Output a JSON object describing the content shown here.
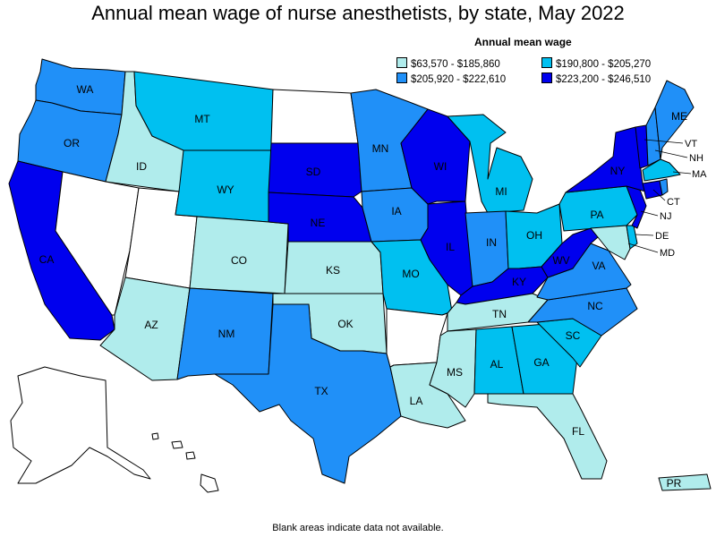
{
  "title": "Annual mean wage of nurse anesthetists, by state, May 2022",
  "legend": {
    "title": "Annual mean wage",
    "bins": [
      {
        "label": "$63,570 - $185,860",
        "color": "#b0ecec"
      },
      {
        "label": "$190,800 - $205,270",
        "color": "#00c0f0"
      },
      {
        "label": "$205,920 - $222,610",
        "color": "#2090f8"
      },
      {
        "label": "$223,200 - $246,510",
        "color": "#0000ee"
      }
    ]
  },
  "footnote": "Blank areas indicate data not available.",
  "colors": {
    "na": "#ffffff",
    "b1": "#b0ecec",
    "b2": "#00c0f0",
    "b3": "#2090f8",
    "b4": "#0000ee"
  },
  "states": {
    "WA": {
      "label": "WA",
      "bin": "b3"
    },
    "OR": {
      "label": "OR",
      "bin": "b3"
    },
    "CA": {
      "label": "CA",
      "bin": "b4"
    },
    "ID": {
      "label": "ID",
      "bin": "b1"
    },
    "NV": {
      "label": "",
      "bin": "na"
    },
    "UT": {
      "label": "",
      "bin": "na"
    },
    "AZ": {
      "label": "AZ",
      "bin": "b1"
    },
    "MT": {
      "label": "MT",
      "bin": "b2"
    },
    "WY": {
      "label": "WY",
      "bin": "b2"
    },
    "CO": {
      "label": "CO",
      "bin": "b1"
    },
    "NM": {
      "label": "NM",
      "bin": "b3"
    },
    "ND": {
      "label": "",
      "bin": "na"
    },
    "SD": {
      "label": "SD",
      "bin": "b4"
    },
    "NE": {
      "label": "NE",
      "bin": "b4"
    },
    "KS": {
      "label": "KS",
      "bin": "b1"
    },
    "OK": {
      "label": "OK",
      "bin": "b1"
    },
    "TX": {
      "label": "TX",
      "bin": "b3"
    },
    "MN": {
      "label": "MN",
      "bin": "b3"
    },
    "IA": {
      "label": "IA",
      "bin": "b3"
    },
    "MO": {
      "label": "MO",
      "bin": "b2"
    },
    "AR": {
      "label": "",
      "bin": "na"
    },
    "LA": {
      "label": "LA",
      "bin": "b1"
    },
    "WI": {
      "label": "WI",
      "bin": "b4"
    },
    "IL": {
      "label": "IL",
      "bin": "b4"
    },
    "MI": {
      "label": "MI",
      "bin": "b2"
    },
    "IN": {
      "label": "IN",
      "bin": "b3"
    },
    "OH": {
      "label": "OH",
      "bin": "b2"
    },
    "KY": {
      "label": "KY",
      "bin": "b4"
    },
    "TN": {
      "label": "TN",
      "bin": "b1"
    },
    "MS": {
      "label": "MS",
      "bin": "b1"
    },
    "AL": {
      "label": "AL",
      "bin": "b2"
    },
    "GA": {
      "label": "GA",
      "bin": "b2"
    },
    "FL": {
      "label": "FL",
      "bin": "b1"
    },
    "SC": {
      "label": "SC",
      "bin": "b2"
    },
    "NC": {
      "label": "NC",
      "bin": "b3"
    },
    "VA": {
      "label": "VA",
      "bin": "b3"
    },
    "WV": {
      "label": "WV",
      "bin": "b4"
    },
    "PA": {
      "label": "PA",
      "bin": "b2"
    },
    "NY": {
      "label": "NY",
      "bin": "b4"
    },
    "ME": {
      "label": "ME",
      "bin": "b3"
    },
    "VT": {
      "label": "VT",
      "bin": "b4"
    },
    "NH": {
      "label": "NH",
      "bin": "b3"
    },
    "MA": {
      "label": "MA",
      "bin": "b2"
    },
    "CT": {
      "label": "CT",
      "bin": "b4"
    },
    "RI": {
      "label": "",
      "bin": "b3"
    },
    "NJ": {
      "label": "NJ",
      "bin": "b4"
    },
    "DE": {
      "label": "DE",
      "bin": "b2"
    },
    "MD": {
      "label": "MD",
      "bin": "b1"
    },
    "AK": {
      "label": "",
      "bin": "na"
    },
    "HI": {
      "label": "",
      "bin": "na"
    },
    "PR": {
      "label": "PR",
      "bin": "b1"
    }
  }
}
